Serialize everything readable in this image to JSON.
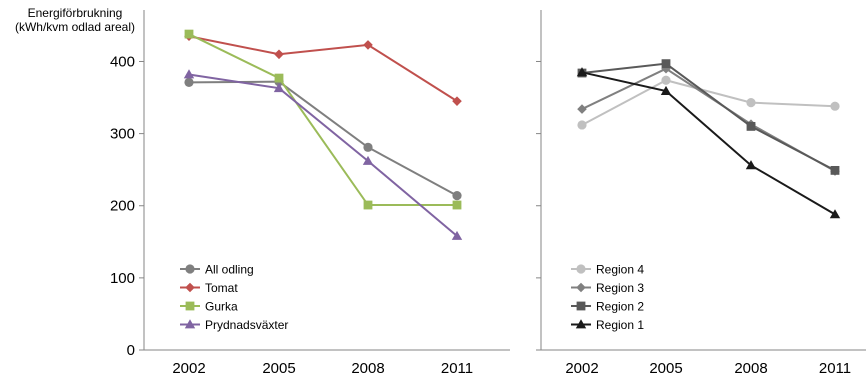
{
  "chart_data": [
    {
      "type": "line",
      "ylabel": [
        "Energiförbrukning",
        "(kWh/kvm odlad areal)"
      ],
      "categories": [
        "2002",
        "2005",
        "2008",
        "2011"
      ],
      "ylim": [
        0,
        450
      ],
      "yticks": [
        0,
        100,
        200,
        300,
        400
      ],
      "grid": false,
      "legend_position": "bottom-left",
      "series": [
        {
          "name": "All odling",
          "color": "#7f7f7f",
          "marker": "circle",
          "values": [
            371,
            372,
            281,
            214
          ]
        },
        {
          "name": "Tomat",
          "color": "#c0504d",
          "marker": "diamond",
          "values": [
            435,
            410,
            423,
            345
          ]
        },
        {
          "name": "Gurka",
          "color": "#9bbb59",
          "marker": "square",
          "values": [
            438,
            377,
            201,
            201
          ]
        },
        {
          "name": "Prydnadsväxter",
          "color": "#8064a2",
          "marker": "triangle",
          "values": [
            382,
            363,
            262,
            158
          ]
        }
      ]
    },
    {
      "type": "line",
      "categories": [
        "2002",
        "2005",
        "2008",
        "2011"
      ],
      "ylim": [
        0,
        450
      ],
      "grid": false,
      "legend_position": "bottom-left",
      "series": [
        {
          "name": "Region 4",
          "color": "#c0c0c0",
          "marker": "circle",
          "values": [
            312,
            374,
            343,
            338
          ]
        },
        {
          "name": "Region 3",
          "color": "#808080",
          "marker": "diamond",
          "values": [
            334,
            390,
            313,
            248
          ]
        },
        {
          "name": "Region 2",
          "color": "#595959",
          "marker": "square",
          "values": [
            384,
            397,
            310,
            249
          ]
        },
        {
          "name": "Region 1",
          "color": "#1a1a1a",
          "marker": "triangle",
          "values": [
            385,
            359,
            256,
            188
          ]
        }
      ]
    }
  ]
}
